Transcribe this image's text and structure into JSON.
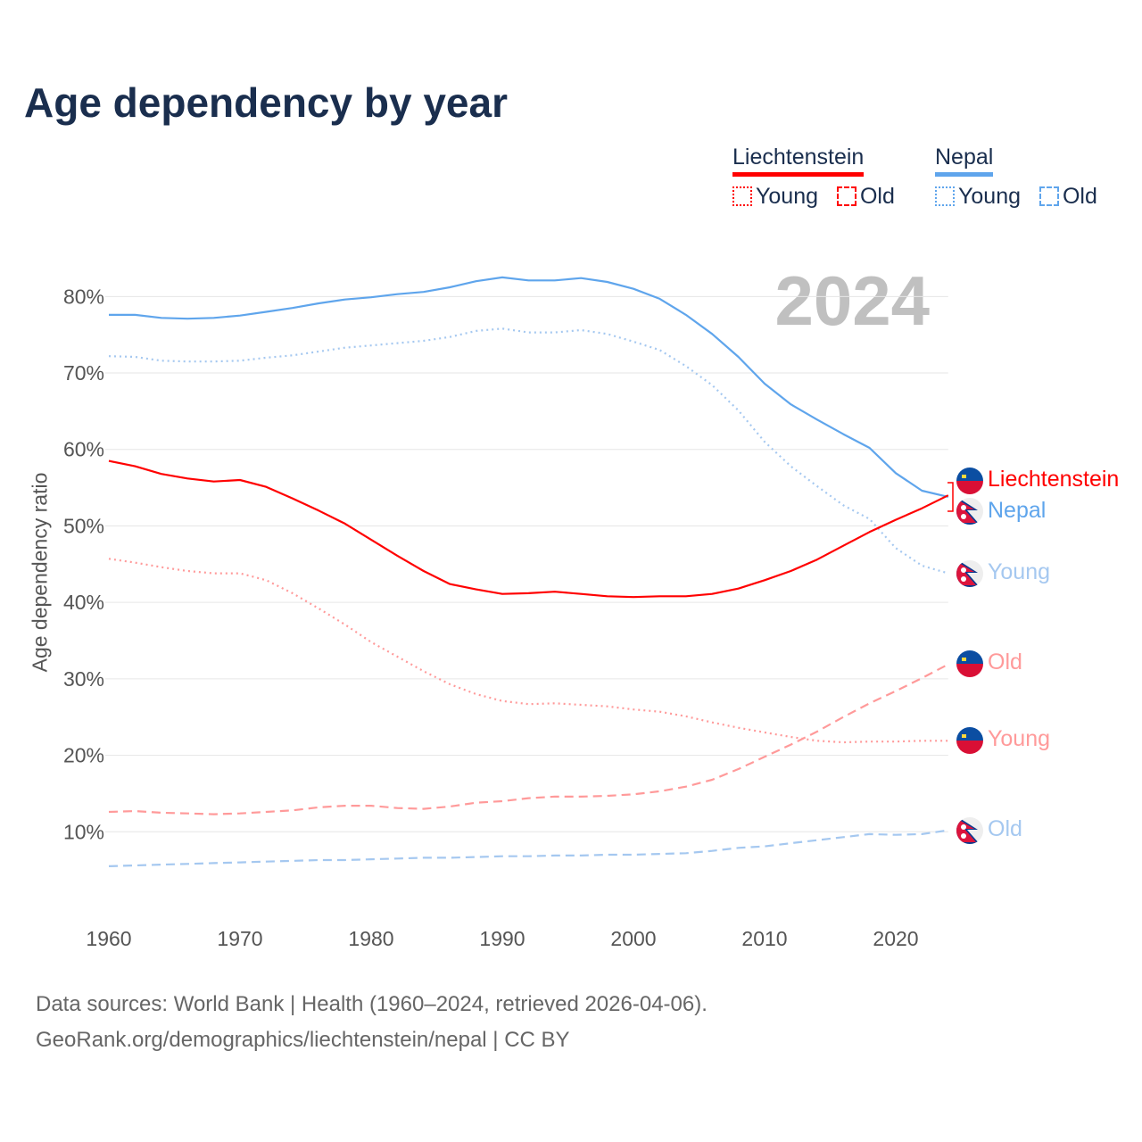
{
  "title": "Age dependency by year",
  "year_display": "2024",
  "legend": {
    "groups": [
      {
        "name": "Liechtenstein",
        "color": "#ff0000",
        "items": [
          "Young",
          "Old"
        ]
      },
      {
        "name": "Nepal",
        "color": "#5fa5ec",
        "items": [
          "Young",
          "Old"
        ]
      }
    ]
  },
  "end_labels": {
    "liechtenstein": "Liechtenstein",
    "nepal": "Nepal",
    "nepal_young": "Young",
    "liechtenstein_old": "Old",
    "liechtenstein_young": "Young",
    "nepal_old": "Old"
  },
  "footer": {
    "line1": "Data sources: World Bank | Health (1960–2024, retrieved 2026-04-06).",
    "line2": "GeoRank.org/demographics/liechtenstein/nepal | CC BY"
  },
  "chart_data": {
    "type": "line",
    "title": "Age dependency by year",
    "xlabel": "",
    "ylabel": "Age dependency ratio",
    "xlim": [
      1960,
      2024
    ],
    "ylim": [
      0,
      85
    ],
    "x_ticks": [
      1960,
      1970,
      1980,
      1990,
      2000,
      2010,
      2020
    ],
    "x_tick_labels": [
      "1960",
      "1970",
      "1980",
      "1990",
      "2000",
      "2010",
      "2020"
    ],
    "y_ticks": [
      10,
      20,
      30,
      40,
      50,
      60,
      70,
      80
    ],
    "y_tick_labels": [
      "10%",
      "20%",
      "30%",
      "40%",
      "50%",
      "60%",
      "70%",
      "80%"
    ],
    "grid": true,
    "legend_position": "top-right",
    "x": [
      1960,
      1962,
      1964,
      1966,
      1968,
      1970,
      1972,
      1974,
      1976,
      1978,
      1980,
      1982,
      1984,
      1986,
      1988,
      1990,
      1992,
      1994,
      1996,
      1998,
      2000,
      2002,
      2004,
      2006,
      2008,
      2010,
      2012,
      2014,
      2016,
      2018,
      2020,
      2022,
      2024
    ],
    "series": [
      {
        "name": "Nepal",
        "style": "solid",
        "color": "#5fa5ec",
        "values": [
          77.6,
          77.6,
          77.2,
          77.1,
          77.2,
          77.5,
          78.0,
          78.5,
          79.1,
          79.6,
          79.9,
          80.3,
          80.6,
          81.2,
          82.0,
          82.5,
          82.1,
          82.1,
          82.4,
          81.9,
          81.0,
          79.7,
          77.6,
          75.1,
          72.1,
          68.6,
          65.9,
          63.9,
          62.0,
          60.2,
          56.9,
          54.6,
          53.8
        ]
      },
      {
        "name": "Nepal Young",
        "style": "dotted",
        "color": "#a5c8f0",
        "values": [
          72.2,
          72.1,
          71.6,
          71.5,
          71.5,
          71.6,
          72.0,
          72.3,
          72.8,
          73.3,
          73.6,
          73.9,
          74.2,
          74.7,
          75.5,
          75.8,
          75.3,
          75.3,
          75.6,
          75.1,
          74.1,
          73.0,
          70.9,
          68.4,
          65.1,
          61.0,
          57.8,
          55.2,
          52.7,
          50.9,
          47.1,
          44.8,
          43.8
        ]
      },
      {
        "name": "Nepal Old",
        "style": "dashed",
        "color": "#a5c8f0",
        "values": [
          5.5,
          5.6,
          5.7,
          5.8,
          5.9,
          6.0,
          6.1,
          6.2,
          6.3,
          6.3,
          6.4,
          6.5,
          6.6,
          6.6,
          6.7,
          6.8,
          6.8,
          6.9,
          6.9,
          7.0,
          7.0,
          7.1,
          7.2,
          7.5,
          7.9,
          8.1,
          8.5,
          8.9,
          9.3,
          9.7,
          9.6,
          9.7,
          10.2
        ]
      },
      {
        "name": "Liechtenstein",
        "style": "solid",
        "color": "#ff0000",
        "values": [
          58.5,
          57.8,
          56.8,
          56.2,
          55.8,
          56.0,
          55.1,
          53.6,
          52.0,
          50.3,
          48.2,
          46.1,
          44.1,
          42.4,
          41.7,
          41.1,
          41.2,
          41.4,
          41.1,
          40.8,
          40.7,
          40.8,
          40.8,
          41.1,
          41.8,
          42.9,
          44.1,
          45.6,
          47.4,
          49.2,
          50.8,
          52.3,
          54.0
        ]
      },
      {
        "name": "Liechtenstein Young",
        "style": "dotted",
        "color": "#ff9a9a",
        "values": [
          45.7,
          45.2,
          44.6,
          44.1,
          43.8,
          43.8,
          42.9,
          41.2,
          39.2,
          37.1,
          34.8,
          32.9,
          31.0,
          29.3,
          28.0,
          27.1,
          26.7,
          26.8,
          26.6,
          26.4,
          26.0,
          25.7,
          25.1,
          24.3,
          23.6,
          23.0,
          22.4,
          21.9,
          21.7,
          21.8,
          21.8,
          21.9,
          21.9
        ]
      },
      {
        "name": "Liechtenstein Old",
        "style": "dashed",
        "color": "#ff9a9a",
        "values": [
          12.6,
          12.7,
          12.5,
          12.4,
          12.3,
          12.4,
          12.6,
          12.8,
          13.2,
          13.4,
          13.4,
          13.1,
          13.0,
          13.3,
          13.8,
          14.0,
          14.4,
          14.6,
          14.6,
          14.7,
          14.9,
          15.3,
          15.9,
          16.8,
          18.2,
          19.8,
          21.4,
          23.1,
          25.0,
          26.8,
          28.4,
          30.1,
          31.9
        ]
      }
    ]
  }
}
